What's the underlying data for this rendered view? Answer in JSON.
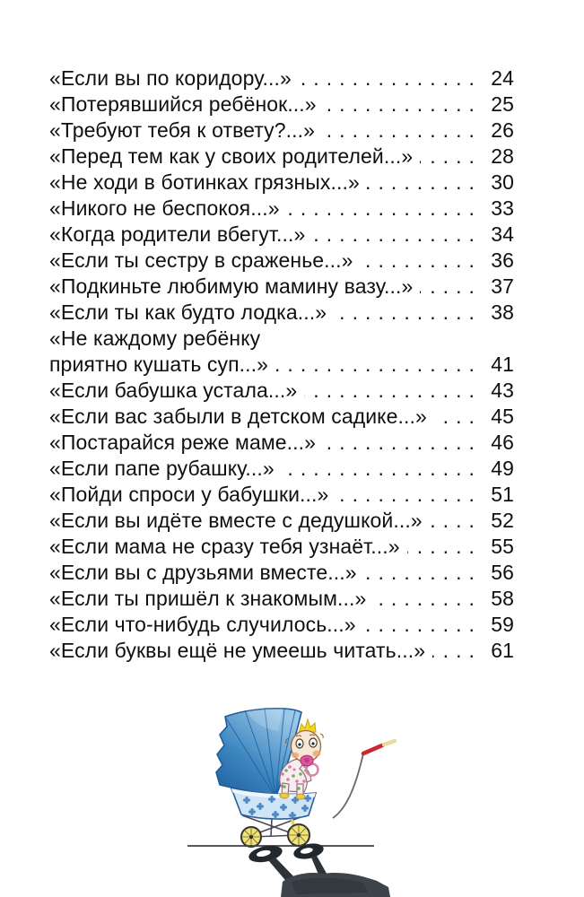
{
  "toc": {
    "entries": [
      {
        "lines": [
          "«Если вы по коридору...»"
        ],
        "page": "24"
      },
      {
        "lines": [
          "«Потерявшийся ребёнок...»"
        ],
        "page": "25"
      },
      {
        "lines": [
          "«Требуют тебя к ответу?...»"
        ],
        "page": "26"
      },
      {
        "lines": [
          "«Перед тем как у своих родителей...»"
        ],
        "page": "28"
      },
      {
        "lines": [
          "«Не ходи в ботинках грязных...»"
        ],
        "page": "30"
      },
      {
        "lines": [
          "«Никого не беспокоя...»"
        ],
        "page": "33"
      },
      {
        "lines": [
          "«Когда родители вбегут...»"
        ],
        "page": "34"
      },
      {
        "lines": [
          "«Если ты сестру в сраженье...»"
        ],
        "page": "36"
      },
      {
        "lines": [
          "«Подкиньте любимую мамину вазу...»"
        ],
        "page": "37"
      },
      {
        "lines": [
          "«Если ты как будто лодка...»"
        ],
        "page": "38"
      },
      {
        "lines": [
          "«Не каждому ребёнку",
          "приятно кушать суп...»"
        ],
        "page": "41"
      },
      {
        "lines": [
          "«Если бабушка устала...»"
        ],
        "page": "43"
      },
      {
        "lines": [
          "«Если вас забыли в детском садике...»"
        ],
        "page": "45"
      },
      {
        "lines": [
          "«Постарайся реже маме...»"
        ],
        "page": "46"
      },
      {
        "lines": [
          "«Если папе рубашку...»"
        ],
        "page": "49"
      },
      {
        "lines": [
          "«Пойди спроси у бабушки...»"
        ],
        "page": "51"
      },
      {
        "lines": [
          "«Если вы идёте вместе с дедушкой...»"
        ],
        "page": "52"
      },
      {
        "lines": [
          "«Если мама не сразу тебя узнаёт...»"
        ],
        "page": "55"
      },
      {
        "lines": [
          "«Если вы с друзьями вместе...»"
        ],
        "page": "56"
      },
      {
        "lines": [
          "«Если ты пришёл к знакомым...»"
        ],
        "page": "58"
      },
      {
        "lines": [
          "«Если что-нибудь случилось...»"
        ],
        "page": "59"
      },
      {
        "lines": [
          "«Если буквы ещё не умеешь читать...»"
        ],
        "page": "61"
      }
    ]
  },
  "illustration": {
    "alt": "Малыш с соской стоит в синей коляске с поднятым капюшоном; коляска отбрасывает тень",
    "colors": {
      "canopy": "#3c86c0",
      "canopy_dark": "#1d5c9c",
      "canopy_light": "#9cc8e8",
      "pram_body": "#cfe4f4",
      "flower": "#3e7fc2",
      "wheel": "#f2e379",
      "chassis": "#4a4a55",
      "handle_red": "#cc2832",
      "handle_tip": "#e9daa0",
      "skin": "#f6e8d4",
      "blush": "#efa36b",
      "hair": "#f4d51d",
      "pacifier": "#e0559b",
      "suit": "#f7ecf0",
      "suit_green": "#6fae52",
      "suit_pink": "#e07aa2",
      "bootie": "#ecc94f",
      "shadow": "#3d444b",
      "shadow_dark": "#23282c",
      "ground": "#3f3f3f"
    }
  }
}
